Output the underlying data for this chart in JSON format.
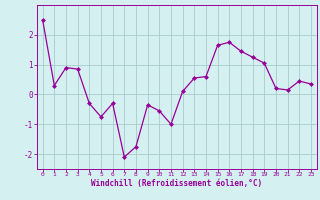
{
  "x": [
    0,
    1,
    2,
    3,
    4,
    5,
    6,
    7,
    8,
    9,
    10,
    11,
    12,
    13,
    14,
    15,
    16,
    17,
    18,
    19,
    20,
    21,
    22,
    23
  ],
  "y": [
    2.5,
    0.3,
    0.9,
    0.85,
    -0.3,
    -0.75,
    -0.3,
    -2.1,
    -1.75,
    -0.35,
    -0.55,
    -1.0,
    0.1,
    0.55,
    0.6,
    1.65,
    1.75,
    1.45,
    1.25,
    1.05,
    0.2,
    0.15,
    0.45,
    0.35
  ],
  "line_color": "#990099",
  "marker": "D",
  "marker_size": 2,
  "bg_color": "#d4f0f0",
  "grid_color": "#aacccc",
  "xlabel": "Windchill (Refroidissement éolien,°C)",
  "xlabel_color": "#990099",
  "tick_color": "#990099",
  "spine_color": "#990099",
  "ylim": [
    -2.5,
    3.0
  ],
  "xlim": [
    -0.5,
    23.5
  ],
  "yticks": [
    -2,
    -1,
    0,
    1,
    2
  ],
  "xticks": [
    0,
    1,
    2,
    3,
    4,
    5,
    6,
    7,
    8,
    9,
    10,
    11,
    12,
    13,
    14,
    15,
    16,
    17,
    18,
    19,
    20,
    21,
    22,
    23
  ]
}
